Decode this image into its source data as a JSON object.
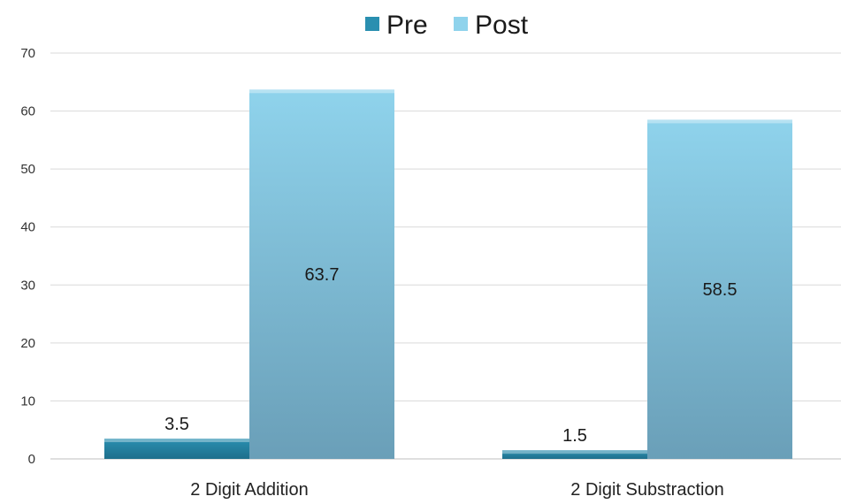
{
  "chart_data": {
    "type": "bar",
    "title": "",
    "xlabel": "",
    "ylabel": "",
    "categories": [
      "2 Digit Addition",
      "2 Digit Substraction"
    ],
    "series": [
      {
        "name": "Pre",
        "values": [
          3.5,
          1.5
        ]
      },
      {
        "name": "Post",
        "values": [
          63.7,
          58.5
        ]
      }
    ],
    "data_labels": [
      [
        "3.5",
        "1.5"
      ],
      [
        "63.7",
        "58.5"
      ]
    ],
    "ylim": [
      0,
      70
    ],
    "yticks": [
      0,
      10,
      20,
      30,
      40,
      50,
      60,
      70
    ],
    "ytick_labels": [
      "0",
      "10",
      "20",
      "30",
      "40",
      "50",
      "60",
      "70"
    ],
    "grid": true,
    "legend_position": "top",
    "colors": {
      "pre": "#2a8fb0",
      "pre_dark": "#1e6f8c",
      "post": "#8fd3ec",
      "post_dark": "#6a9fb8"
    }
  }
}
